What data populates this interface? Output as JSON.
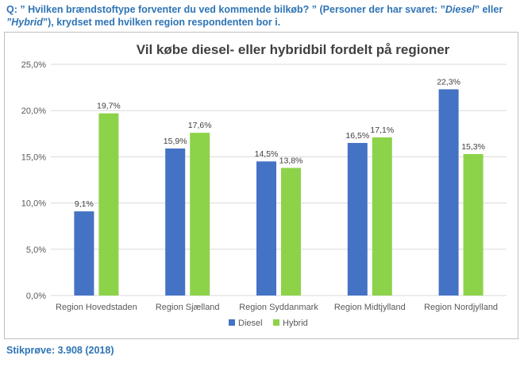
{
  "question": {
    "part1": "Q: ”  Hvilken brændstoftype forventer du ved kommende bilkøb? ” (Personer der har svaret: ”",
    "diesel": "Diesel",
    "part2": "” eller",
    "hybrid": "”Hybrid",
    "part3": "”), krydset med hvilken region respondenten bor i."
  },
  "footnote": "Stikprøve: 3.908 (2018)",
  "colors": {
    "diesel": "#4472c4",
    "hybrid": "#8cd34a",
    "grid": "#d9d9d9",
    "text": "#595959",
    "title": "#404040"
  },
  "chart_data": {
    "type": "bar",
    "title": "Vil købe diesel- eller hybridbil fordelt på regioner",
    "xlabel": "",
    "ylabel": "",
    "categories": [
      "Region Hovedstaden",
      "Region Sjælland",
      "Region Syddanmark",
      "Region Midtjylland",
      "Region Nordjylland"
    ],
    "series": [
      {
        "name": "Diesel",
        "values": [
          9.1,
          15.9,
          14.5,
          16.5,
          22.3
        ],
        "labels": [
          "9,1%",
          "15,9%",
          "14,5%",
          "16,5%",
          "22,3%"
        ],
        "color": "#4472c4"
      },
      {
        "name": "Hybrid",
        "values": [
          19.7,
          17.6,
          13.8,
          17.1,
          15.3
        ],
        "labels": [
          "19,7%",
          "17,6%",
          "13,8%",
          "17,1%",
          "15,3%"
        ],
        "color": "#8cd34a"
      }
    ],
    "ylim": [
      0,
      25
    ],
    "yticks": [
      0,
      5,
      10,
      15,
      20,
      25
    ],
    "ytick_labels": [
      "0,0%",
      "5,0%",
      "10,0%",
      "15,0%",
      "20,0%",
      "25,0%"
    ],
    "grid": true,
    "legend": "bottom"
  }
}
